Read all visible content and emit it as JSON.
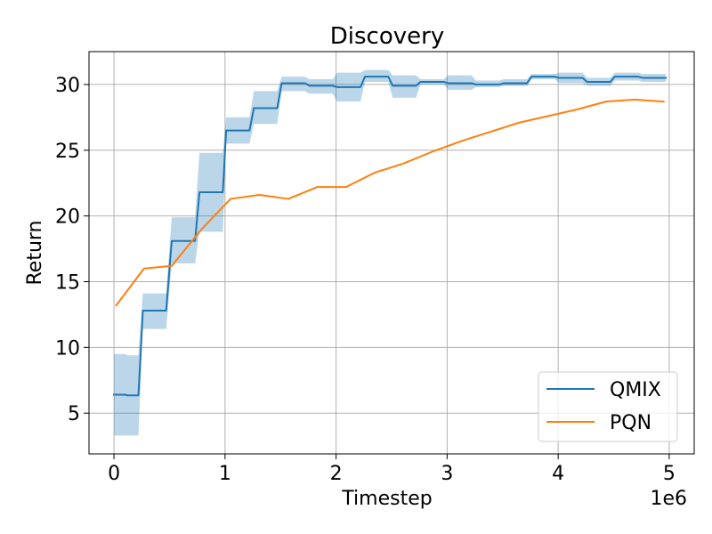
{
  "chart_data": {
    "type": "line",
    "title": "Discovery",
    "xlabel": "Timestep",
    "ylabel": "Return",
    "x_offset_label": "1e6",
    "x_unit_multiplier": 1000000,
    "xlim": [
      -0.225,
      5.225
    ],
    "ylim": [
      1.9,
      32.5
    ],
    "xticks": [
      0,
      1,
      2,
      3,
      4,
      5
    ],
    "xtick_labels": [
      "0",
      "1",
      "2",
      "3",
      "4",
      "5"
    ],
    "yticks": [
      5,
      10,
      15,
      20,
      25,
      30
    ],
    "ytick_labels": [
      "5",
      "10",
      "15",
      "20",
      "25",
      "30"
    ],
    "grid": true,
    "legend_position": "lower right",
    "series": [
      {
        "name": "QMIX",
        "color": "#1f77b4",
        "band_color": "#1f77b4",
        "x": [
          0.0,
          0.1,
          0.12,
          0.22,
          0.26,
          0.47,
          0.52,
          0.73,
          0.77,
          0.98,
          1.01,
          1.22,
          1.26,
          1.47,
          1.51,
          1.72,
          1.76,
          1.97,
          2.01,
          2.22,
          2.26,
          2.47,
          2.51,
          2.72,
          2.76,
          2.97,
          3.01,
          3.22,
          3.26,
          3.47,
          3.51,
          3.72,
          3.76,
          3.97,
          4.01,
          4.22,
          4.26,
          4.47,
          4.51,
          4.72,
          4.76,
          4.97
        ],
        "y": [
          6.4,
          6.4,
          6.35,
          6.35,
          12.8,
          12.8,
          18.1,
          18.1,
          21.8,
          21.8,
          26.5,
          26.5,
          28.2,
          28.2,
          30.1,
          30.1,
          29.9,
          29.9,
          29.8,
          29.8,
          30.6,
          30.6,
          29.9,
          29.9,
          30.2,
          30.2,
          30.1,
          30.1,
          30.0,
          30.0,
          30.1,
          30.1,
          30.6,
          30.6,
          30.5,
          30.5,
          30.2,
          30.2,
          30.6,
          30.6,
          30.5,
          30.5
        ],
        "y_lower": [
          3.3,
          3.3,
          3.3,
          3.3,
          11.4,
          11.4,
          16.4,
          16.4,
          18.8,
          18.8,
          25.5,
          25.5,
          27.0,
          27.0,
          29.5,
          29.5,
          29.3,
          29.3,
          28.7,
          28.7,
          30.2,
          30.2,
          29.0,
          29.0,
          30.0,
          30.0,
          29.6,
          29.6,
          29.8,
          29.8,
          29.9,
          29.9,
          30.4,
          30.4,
          30.1,
          30.1,
          29.9,
          29.9,
          30.3,
          30.3,
          30.2,
          30.2
        ],
        "y_upper": [
          9.5,
          9.5,
          9.4,
          9.4,
          14.1,
          14.1,
          19.9,
          19.9,
          24.8,
          24.8,
          27.5,
          27.5,
          29.5,
          29.5,
          30.6,
          30.6,
          30.4,
          30.4,
          30.9,
          30.9,
          31.1,
          31.1,
          30.7,
          30.7,
          30.4,
          30.4,
          30.7,
          30.7,
          30.3,
          30.3,
          30.4,
          30.4,
          30.8,
          30.8,
          30.9,
          30.9,
          30.5,
          30.5,
          30.9,
          30.9,
          30.8,
          30.8
        ]
      },
      {
        "name": "PQN",
        "color": "#ff7f0e",
        "x": [
          0.02,
          0.27,
          0.52,
          0.79,
          1.05,
          1.31,
          1.57,
          1.83,
          2.09,
          2.35,
          2.61,
          2.87,
          3.13,
          3.39,
          3.65,
          3.91,
          4.17,
          4.43,
          4.69,
          4.95
        ],
        "y": [
          13.2,
          16.0,
          16.2,
          19.0,
          21.3,
          21.6,
          21.3,
          22.2,
          22.2,
          23.3,
          24.0,
          24.9,
          25.7,
          26.4,
          27.1,
          27.6,
          28.1,
          28.7,
          28.85,
          28.7
        ]
      }
    ]
  }
}
